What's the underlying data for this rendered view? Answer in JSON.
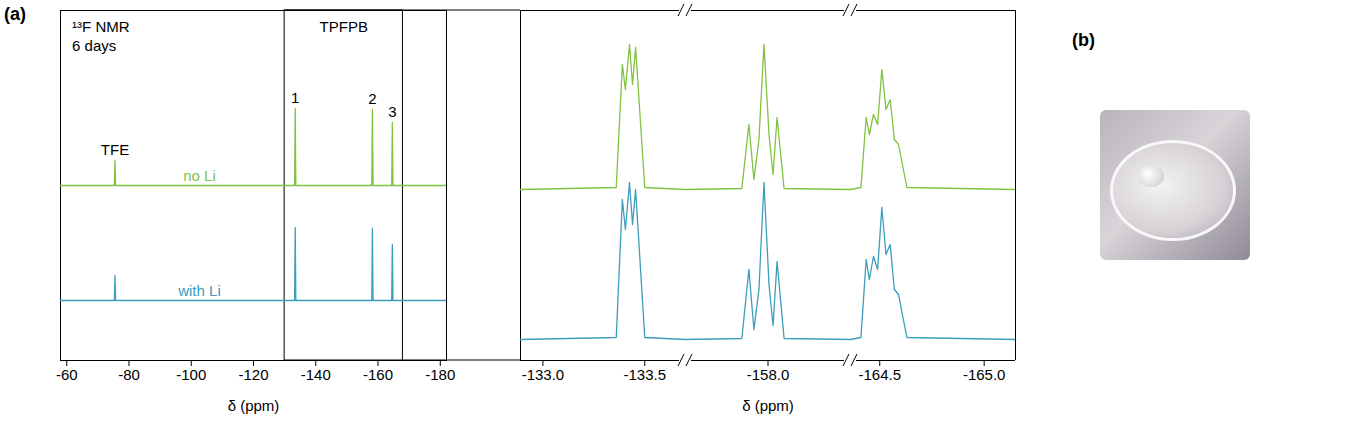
{
  "chart_data": [
    {
      "type": "line",
      "panel_label": "(a)",
      "title": "¹³F NMR",
      "subtitle": "6 days",
      "x_label": "δ (ppm)",
      "xlim": [
        -58,
        -182
      ],
      "xticks": [
        -60,
        -80,
        -100,
        -120,
        -140,
        -160,
        -180
      ],
      "ylim": [
        -60,
        290
      ],
      "tick_labels": "x",
      "grid": false,
      "zoom_region": [
        -130,
        -168
      ],
      "region_label": "TPFPB",
      "annotations": [
        {
          "text": "TFE",
          "x": -75.5
        },
        {
          "text": "1",
          "x": -133.4
        },
        {
          "text": "2",
          "x": -158.2
        },
        {
          "text": "3",
          "x": -164.6
        }
      ],
      "series": [
        {
          "name": "no Li",
          "color": "#80c241",
          "x": [
            -58,
            -75.3,
            -75.5,
            -75.7,
            -133.2,
            -133.4,
            -133.6,
            -158,
            -158.2,
            -158.4,
            -164.4,
            -164.6,
            -164.8,
            -182
          ],
          "values": [
            115,
            115,
            140,
            115,
            115,
            192,
            115,
            115,
            191,
            115,
            115,
            178,
            115,
            115
          ]
        },
        {
          "name": "with Li",
          "color": "#3c9dbd",
          "x": [
            -58,
            -75.3,
            -75.5,
            -75.7,
            -133.2,
            -133.4,
            -133.6,
            -158,
            -158.2,
            -158.4,
            -164.4,
            -164.6,
            -164.8,
            -182
          ],
          "values": [
            0,
            0,
            25,
            0,
            0,
            73,
            0,
            0,
            72,
            0,
            0,
            56,
            0,
            0
          ]
        }
      ]
    },
    {
      "type": "line",
      "x_label": "δ (ppm)",
      "ylim": [
        -21,
        329
      ],
      "tick_labels": "x",
      "grid": false,
      "segments": [
        {
          "xlim": [
            -132.89,
            -133.7
          ],
          "xticks": [
            {
              "value": -133,
              "label": "-133.0"
            },
            -133.5
          ]
        },
        {
          "xlim": [
            -157.59,
            -158.41
          ],
          "xticks": [
            {
              "value": -158,
              "label": "-158.0"
            }
          ]
        },
        {
          "xlim": [
            -164.36,
            -165.15
          ],
          "xticks": [
            -164.5,
            {
              "value": -165,
              "label": "-165.0"
            }
          ]
        }
      ],
      "series": [
        {
          "color": "#80c241",
          "x": [
            -132.89,
            -133.36,
            -133.39,
            -133.405,
            -133.425,
            -133.44,
            -133.455,
            -133.5,
            -133.7,
            -157.59,
            -157.87,
            -157.905,
            -157.93,
            -157.955,
            -157.98,
            -158.005,
            -158.025,
            -158.045,
            -158.08,
            -158.41,
            -164.36,
            -164.41,
            -164.435,
            -164.45,
            -164.47,
            -164.49,
            -164.51,
            -164.53,
            -164.55,
            -164.57,
            -164.59,
            -164.63,
            -165.15
          ],
          "values": [
            150,
            152,
            275,
            250,
            295,
            255,
            292,
            152,
            150,
            150,
            151,
            215,
            160,
            200,
            295,
            205,
            165,
            222,
            151,
            150,
            150,
            152,
            222,
            205,
            225,
            215,
            270,
            230,
            240,
            200,
            195,
            152,
            150
          ]
        },
        {
          "color": "#3c9dbd",
          "x": [
            -132.89,
            -133.36,
            -133.39,
            -133.405,
            -133.425,
            -133.44,
            -133.455,
            -133.5,
            -133.7,
            -157.59,
            -157.87,
            -157.905,
            -157.93,
            -157.955,
            -157.98,
            -158.005,
            -158.025,
            -158.045,
            -158.08,
            -158.41,
            -164.36,
            -164.41,
            -164.435,
            -164.45,
            -164.47,
            -164.49,
            -164.51,
            -164.53,
            -164.55,
            -164.57,
            -164.59,
            -164.63,
            -165.15
          ],
          "values": [
            0,
            2,
            140,
            110,
            157,
            115,
            150,
            2,
            0,
            0,
            1,
            70,
            10,
            50,
            157,
            55,
            14,
            78,
            1,
            0,
            0,
            2,
            80,
            60,
            83,
            70,
            132,
            85,
            95,
            50,
            45,
            2,
            0
          ]
        }
      ]
    }
  ],
  "photo": {
    "panel_label": "(b)"
  }
}
